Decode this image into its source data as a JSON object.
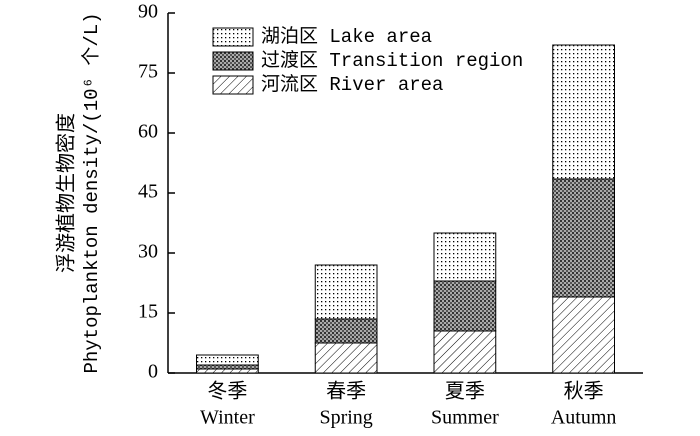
{
  "chart_data": {
    "type": "stacked-bar",
    "ylabel": [
      "浮游植物生物密度",
      "Phytoplankton density/(10⁶ 个/L)"
    ],
    "categories": [
      [
        "冬季",
        "Winter"
      ],
      [
        "春季",
        "Spring"
      ],
      [
        "夏季",
        "Summer"
      ],
      [
        "秋季",
        "Autumn"
      ]
    ],
    "series": [
      {
        "name": "河流区 River area",
        "color": "#000000",
        "pattern": "diagonal",
        "values": [
          1.0,
          7.5,
          10.5,
          19
        ]
      },
      {
        "name": "过渡区 Transition region",
        "color": "#000000",
        "pattern": "crosshatch",
        "values": [
          1.0,
          6,
          12.5,
          29.5
        ]
      },
      {
        "name": "湖泊区 Lake area",
        "color": "#000000",
        "pattern": "dots",
        "values": [
          2.5,
          13.5,
          12,
          33.5
        ]
      }
    ],
    "ylim": [
      0,
      90
    ],
    "yticks": [
      0,
      15,
      30,
      45,
      60,
      75,
      90
    ],
    "legend": "upper left"
  }
}
